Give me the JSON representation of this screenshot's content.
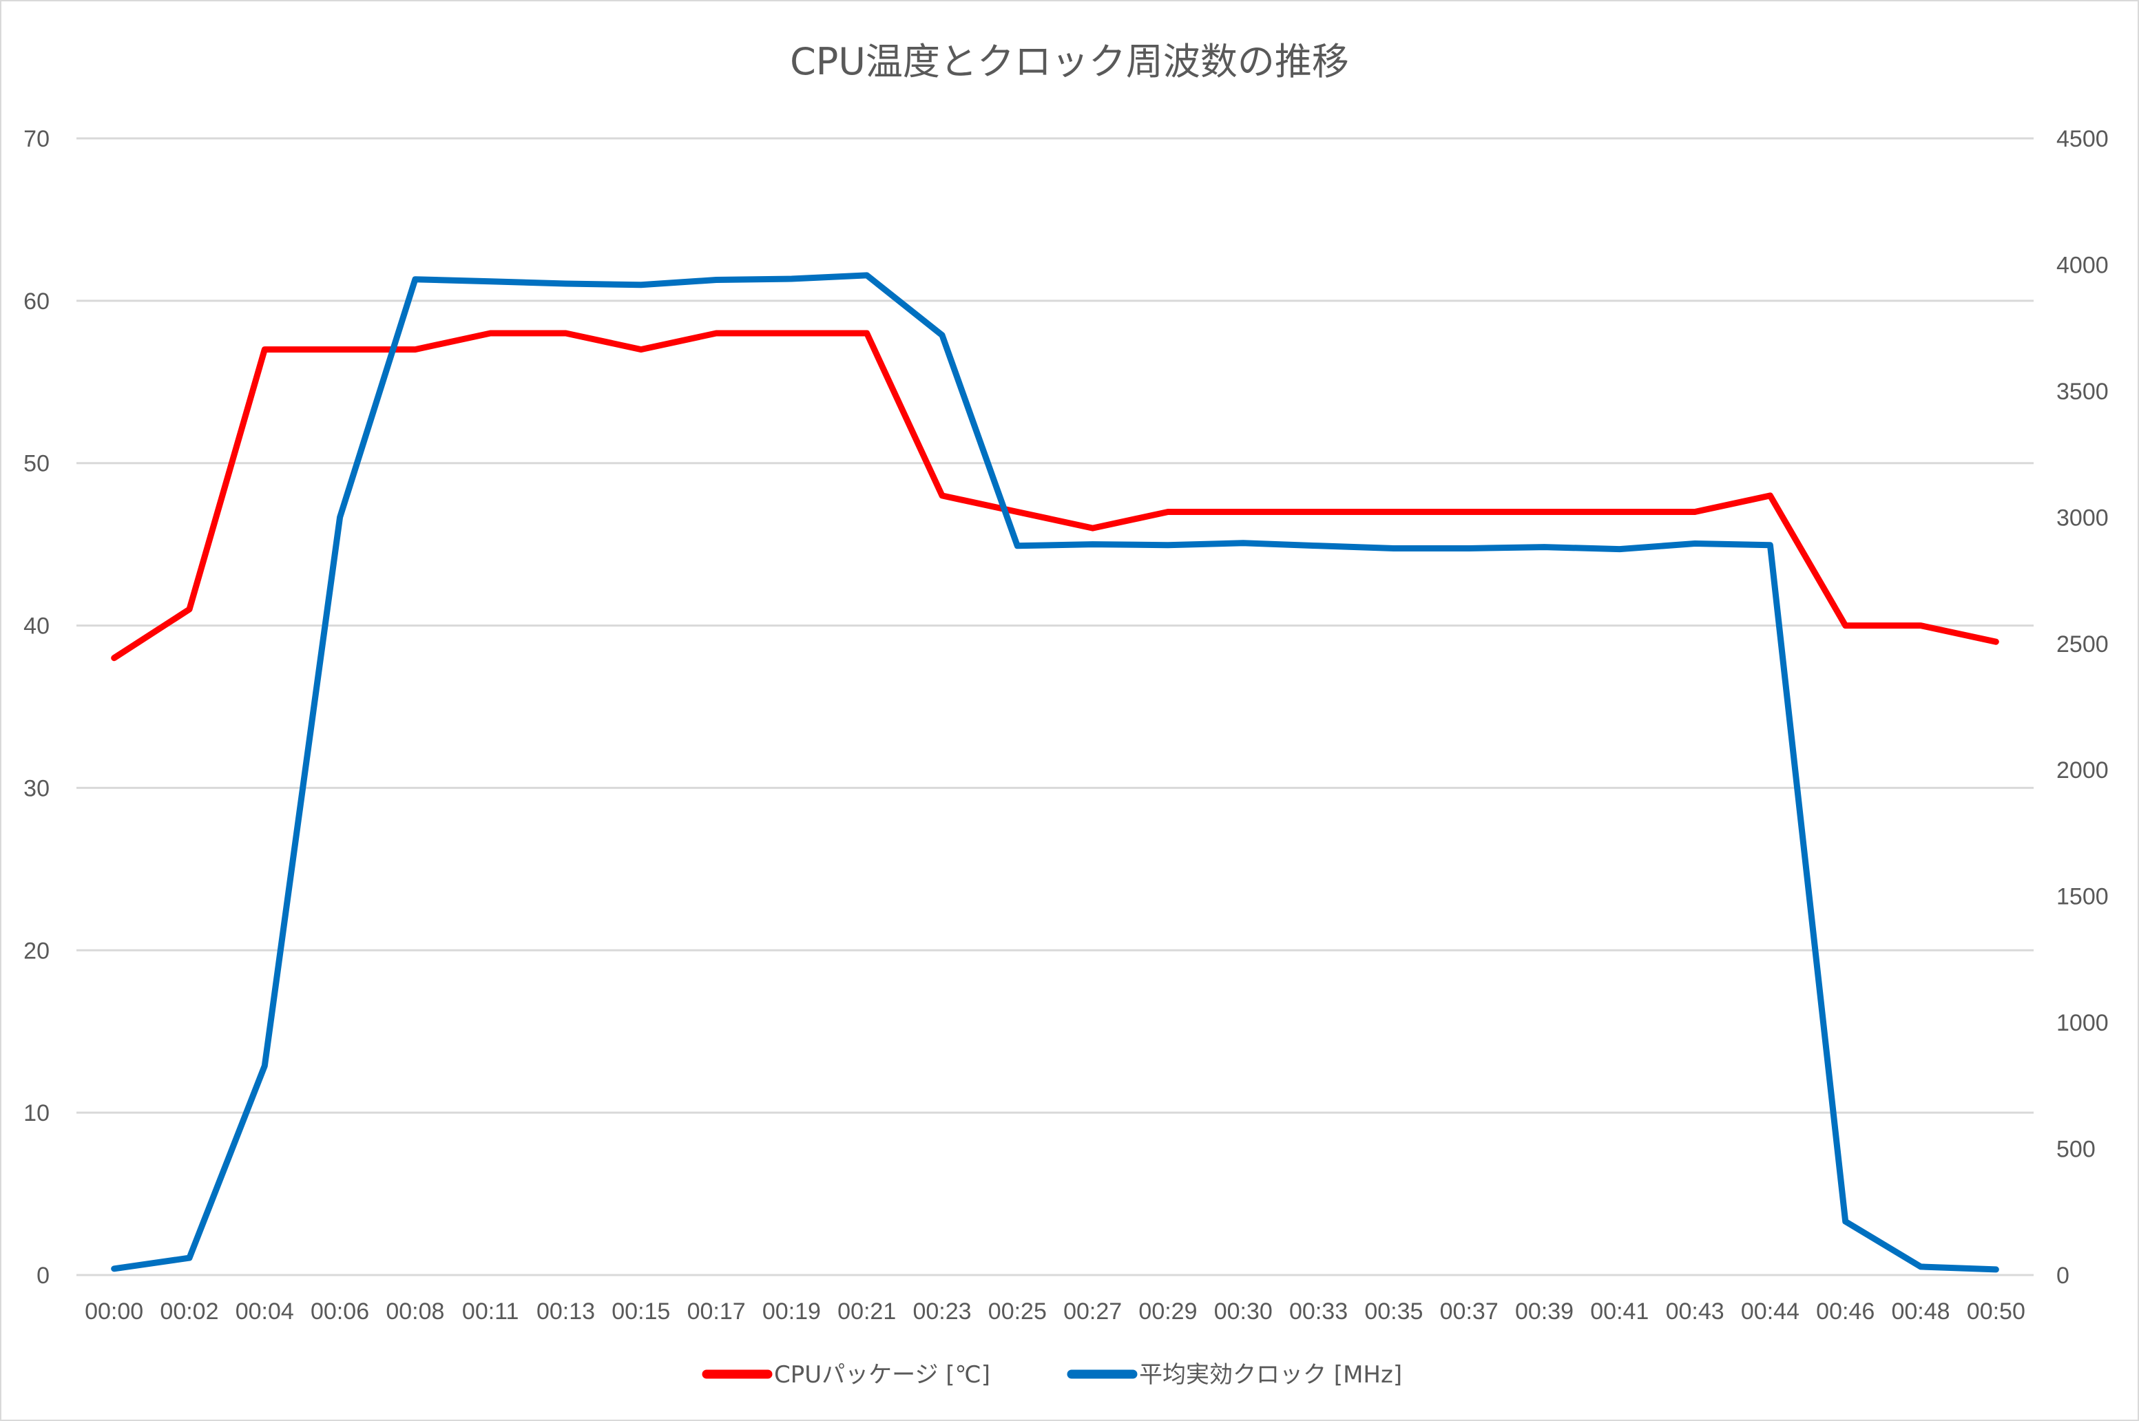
{
  "chart_data": {
    "type": "line",
    "title": "CPU温度とクロック周波数の推移",
    "xlabel": "",
    "ylabel_left": "",
    "ylabel_right": "",
    "categories": [
      "00:00",
      "00:02",
      "00:04",
      "00:06",
      "00:08",
      "00:11",
      "00:13",
      "00:15",
      "00:17",
      "00:19",
      "00:21",
      "00:23",
      "00:25",
      "00:27",
      "00:29",
      "00:30",
      "00:33",
      "00:35",
      "00:37",
      "00:39",
      "00:41",
      "00:43",
      "00:44",
      "00:46",
      "00:48",
      "00:50"
    ],
    "series": [
      {
        "name": "CPUパッケージ [℃]",
        "axis": "left",
        "color": "#FF0000",
        "values": [
          38,
          41,
          57,
          57,
          57,
          58,
          58,
          57,
          58,
          58,
          58,
          48,
          47,
          46,
          47,
          47,
          47,
          47,
          47,
          47,
          47,
          47,
          48,
          40,
          40,
          39
        ]
      },
      {
        "name": "平均実効クロック [MHz]",
        "axis": "right",
        "color": "#0070C0",
        "values": [
          25,
          68,
          828,
          3000,
          3942,
          3934,
          3925,
          3920,
          3940,
          3944,
          3958,
          3721,
          2887,
          2893,
          2890,
          2898,
          2887,
          2877,
          2877,
          2882,
          2874,
          2896,
          2890,
          212,
          33,
          22
        ]
      }
    ],
    "ylim_left": [
      0,
      70
    ],
    "yticks_left": [
      0,
      10,
      20,
      30,
      40,
      50,
      60,
      70
    ],
    "ylim_right": [
      0,
      4500
    ],
    "yticks_right": [
      0,
      500,
      1000,
      1500,
      2000,
      2500,
      3000,
      3500,
      4000,
      4500
    ],
    "grid": true,
    "legend_position": "bottom"
  }
}
